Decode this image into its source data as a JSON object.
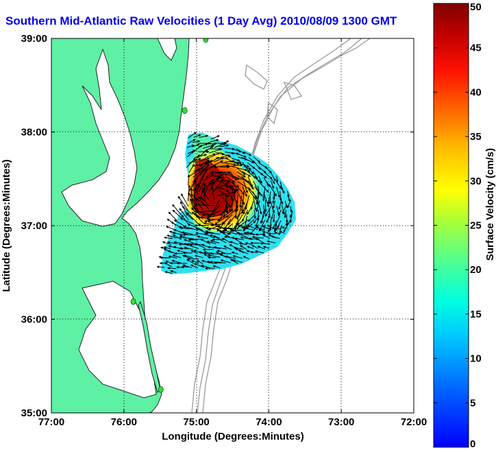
{
  "title": "Southern Mid-Atlantic Raw Velocities (1 Day Avg) 2010/08/09 1300 GMT",
  "colors": {
    "land": "#5ef0a4",
    "bathymetry": "#9a9a9a",
    "coastline": "#222222",
    "vectors": "#000000",
    "station": "#33dd33",
    "title": "#0000ee"
  },
  "chart_data": {
    "type": "heatmap",
    "subtype": "surface-current-velocity-map",
    "title": "Southern Mid-Atlantic Raw Velocities (1 Day Avg) 2010/08/09 1300 GMT",
    "xlabel": "Longitude (Degrees:Minutes)",
    "ylabel": "Latitude (Degrees:Minutes)",
    "xlim": [
      -77,
      -72
    ],
    "ylim": [
      35,
      39
    ],
    "xticks": [
      {
        "value": -77,
        "label": "77:00"
      },
      {
        "value": -76,
        "label": "76:00"
      },
      {
        "value": -75,
        "label": "75:00"
      },
      {
        "value": -74,
        "label": "74:00"
      },
      {
        "value": -73,
        "label": "73:00"
      },
      {
        "value": -72,
        "label": "72:00"
      }
    ],
    "yticks": [
      {
        "value": 35,
        "label": "35:00"
      },
      {
        "value": 36,
        "label": "36:00"
      },
      {
        "value": 37,
        "label": "37:00"
      },
      {
        "value": 38,
        "label": "38:00"
      },
      {
        "value": 39,
        "label": "39:00"
      }
    ],
    "grid": "dotted",
    "colorbar": {
      "label": "Surface Velocity (cm/s)",
      "range": [
        0,
        50
      ],
      "ticks": [
        0,
        5,
        10,
        15,
        20,
        25,
        30,
        35,
        40,
        45,
        50
      ],
      "colormap": "jet"
    },
    "stations": [
      {
        "lon": -74.87,
        "lat": 38.99
      },
      {
        "lon": -75.16,
        "lat": 38.23
      },
      {
        "lon": -75.87,
        "lat": 36.19
      },
      {
        "lon": -75.49,
        "lat": 35.25
      }
    ],
    "velocity_field_extent": {
      "lon": [
        -75.5,
        -73.6
      ],
      "lat": [
        36.5,
        37.95
      ]
    }
  }
}
